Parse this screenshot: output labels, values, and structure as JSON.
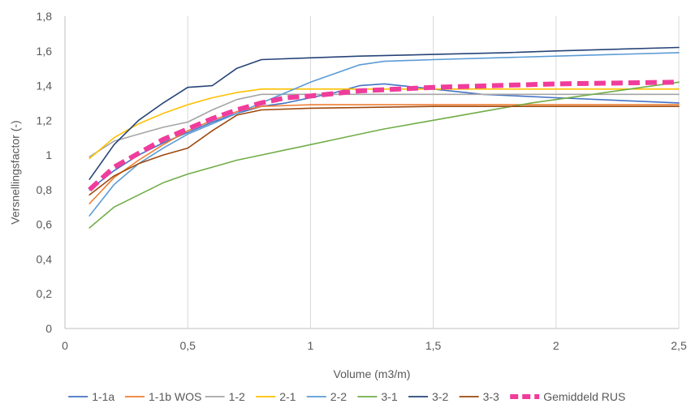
{
  "chart_data": {
    "type": "line",
    "title": "",
    "xlabel": "Volume (m3/m)",
    "ylabel": "Versnellingsfactor (-)",
    "xlim": [
      0,
      2.5
    ],
    "ylim": [
      0,
      1.8
    ],
    "xticks": [
      "0",
      "0,5",
      "1",
      "1,5",
      "2",
      "2,5"
    ],
    "yticks": [
      "0",
      "0,2",
      "0,4",
      "0,6",
      "0,8",
      "1",
      "1,2",
      "1,4",
      "1,6",
      "1,8"
    ],
    "grid": "vertical",
    "legend_position": "bottom",
    "series": [
      {
        "name": "1-1a",
        "color": "#4472C4",
        "dashed": false,
        "x": [
          0.1,
          0.2,
          0.3,
          0.4,
          0.5,
          0.6,
          0.7,
          0.8,
          0.9,
          1.0,
          1.1,
          1.2,
          1.3,
          1.5,
          1.7,
          2.0,
          2.5
        ],
        "y": [
          0.8,
          0.91,
          1.0,
          1.07,
          1.13,
          1.19,
          1.24,
          1.28,
          1.3,
          1.33,
          1.36,
          1.4,
          1.41,
          1.38,
          1.35,
          1.33,
          1.3
        ]
      },
      {
        "name": "1-1b WOS",
        "color": "#ED7D31",
        "dashed": false,
        "x": [
          0.1,
          0.2,
          0.3,
          0.4,
          0.5,
          0.6,
          0.7,
          0.8,
          1.0,
          1.5,
          2.0,
          2.5
        ],
        "y": [
          0.72,
          0.87,
          0.97,
          1.06,
          1.14,
          1.2,
          1.25,
          1.28,
          1.29,
          1.29,
          1.29,
          1.29
        ]
      },
      {
        "name": "1-2",
        "color": "#A5A5A5",
        "dashed": false,
        "x": [
          0.1,
          0.2,
          0.3,
          0.4,
          0.5,
          0.6,
          0.7,
          0.8,
          0.9,
          1.0,
          1.5,
          2.0,
          2.5
        ],
        "y": [
          0.99,
          1.08,
          1.12,
          1.16,
          1.19,
          1.26,
          1.32,
          1.35,
          1.35,
          1.35,
          1.35,
          1.35,
          1.35
        ]
      },
      {
        "name": "2-1",
        "color": "#FFC000",
        "dashed": false,
        "x": [
          0.1,
          0.2,
          0.3,
          0.4,
          0.5,
          0.6,
          0.7,
          0.8,
          1.0,
          1.5,
          2.0,
          2.5
        ],
        "y": [
          0.98,
          1.1,
          1.18,
          1.24,
          1.29,
          1.33,
          1.36,
          1.38,
          1.38,
          1.38,
          1.38,
          1.38
        ]
      },
      {
        "name": "2-2",
        "color": "#5B9BD5",
        "dashed": false,
        "x": [
          0.1,
          0.2,
          0.3,
          0.4,
          0.5,
          0.6,
          0.7,
          0.8,
          0.9,
          1.0,
          1.1,
          1.2,
          1.3,
          1.5,
          2.0,
          2.5
        ],
        "y": [
          0.65,
          0.83,
          0.95,
          1.04,
          1.12,
          1.18,
          1.24,
          1.3,
          1.36,
          1.42,
          1.47,
          1.52,
          1.54,
          1.55,
          1.57,
          1.59
        ]
      },
      {
        "name": "3-1",
        "color": "#70AD47",
        "dashed": false,
        "x": [
          0.1,
          0.2,
          0.3,
          0.4,
          0.5,
          0.6,
          0.7,
          0.8,
          0.9,
          1.0,
          1.1,
          1.2,
          1.3,
          1.5,
          1.7,
          1.9,
          2.1,
          2.3,
          2.5
        ],
        "y": [
          0.58,
          0.7,
          0.77,
          0.84,
          0.89,
          0.93,
          0.97,
          1.0,
          1.03,
          1.06,
          1.09,
          1.12,
          1.15,
          1.2,
          1.25,
          1.3,
          1.34,
          1.38,
          1.42
        ]
      },
      {
        "name": "3-2",
        "color": "#264478",
        "dashed": false,
        "x": [
          0.1,
          0.2,
          0.3,
          0.4,
          0.5,
          0.6,
          0.7,
          0.8,
          1.0,
          1.2,
          1.5,
          1.8,
          2.0,
          2.5
        ],
        "y": [
          0.86,
          1.06,
          1.2,
          1.3,
          1.39,
          1.4,
          1.5,
          1.55,
          1.56,
          1.57,
          1.58,
          1.59,
          1.6,
          1.62
        ]
      },
      {
        "name": "3-3",
        "color": "#9E480E",
        "dashed": false,
        "x": [
          0.1,
          0.2,
          0.3,
          0.4,
          0.5,
          0.6,
          0.7,
          0.8,
          1.0,
          1.5,
          2.0,
          2.5
        ],
        "y": [
          0.77,
          0.88,
          0.95,
          1.0,
          1.04,
          1.14,
          1.23,
          1.26,
          1.27,
          1.28,
          1.28,
          1.28
        ]
      },
      {
        "name": "Gemiddeld RUS",
        "color": "#F03C9B",
        "dashed": true,
        "x": [
          0.1,
          0.2,
          0.3,
          0.4,
          0.5,
          0.6,
          0.7,
          0.8,
          0.9,
          1.0,
          1.2,
          1.5,
          2.0,
          2.5
        ],
        "y": [
          0.8,
          0.93,
          1.01,
          1.09,
          1.15,
          1.21,
          1.26,
          1.3,
          1.33,
          1.34,
          1.37,
          1.39,
          1.41,
          1.42
        ]
      }
    ]
  }
}
